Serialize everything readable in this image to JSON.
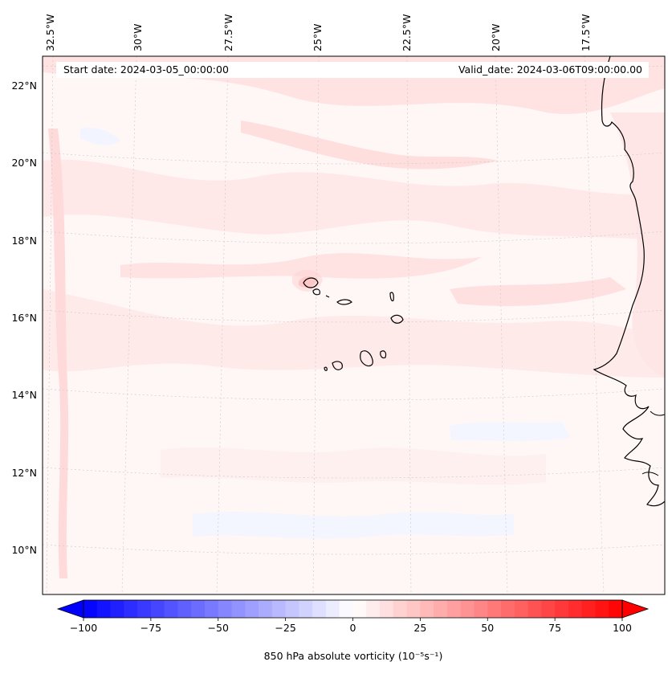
{
  "map": {
    "start_date": "Start date: 2024-03-05_00:00:00",
    "valid_date": "Valid_date: 2024-03-06T09:00:00.00",
    "lon_labels": [
      "32.5°W",
      "30°W",
      "27.5°W",
      "25°W",
      "22.5°W",
      "20°W",
      "17.5°W"
    ],
    "lat_labels": [
      "22°N",
      "20°N",
      "18°N",
      "16°N",
      "14°N",
      "12°N",
      "10°N"
    ],
    "islands": "Cape Verde",
    "coastline": "West Africa"
  },
  "colorbar": {
    "label": "850 hPa absolute vorticity (10⁻⁵s⁻¹)",
    "ticks": [
      "−100",
      "−75",
      "−50",
      "−25",
      "0",
      "25",
      "50",
      "75",
      "100"
    ],
    "min": -100,
    "max": 100,
    "levels": 40,
    "cmap_low": "#0000ff",
    "cmap_mid": "#ffffff",
    "cmap_high": "#ff0000"
  }
}
